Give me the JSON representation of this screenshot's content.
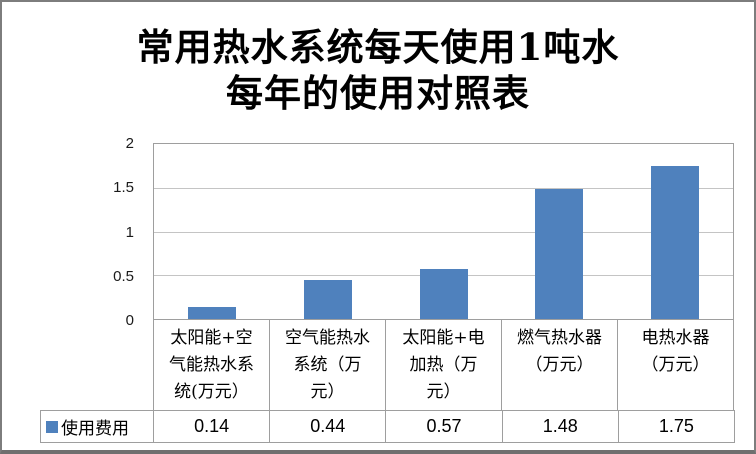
{
  "window": {
    "background": "#ffffff",
    "border_color": "#7d7d7d"
  },
  "title": {
    "line1": "常用热水系统每天使用1吨水",
    "line2": "每年的使用对照表"
  },
  "chart_data": {
    "type": "bar",
    "title": "常用热水系统每天使用1吨水每年的使用对照表",
    "categories": [
      "太阳能+空气能热水系统(万元）",
      "空气能热水系统（万元）",
      "太阳能+电加热（万元）",
      "燃气热水器（万元）",
      "电热水器（万元）"
    ],
    "series": [
      {
        "name": "使用费用",
        "values": [
          0.14,
          0.44,
          0.57,
          1.48,
          1.75
        ]
      }
    ],
    "xlabel": "",
    "ylabel": "",
    "ylim": [
      0,
      2
    ],
    "yticks": [
      0,
      0.5,
      1,
      1.5,
      2
    ],
    "ytick_labels": [
      "0",
      "0.5",
      "1",
      "1.5",
      "2"
    ],
    "grid": true,
    "legend_position": "bottom-left-table",
    "bar_color": "#4F81BD",
    "gridline_color": "#c4c4c4",
    "axis_border_color": "#9e9e9e"
  },
  "data_table": {
    "header_lines": [
      [
        "太阳能+空",
        "气能热水系",
        "统(万元）"
      ],
      [
        "空气能热水",
        "系统（万",
        "元）"
      ],
      [
        "太阳能+电",
        "加热（万",
        "元）"
      ],
      [
        "燃气热水器",
        "（万元）"
      ],
      [
        "电热水器",
        "（万元）"
      ]
    ],
    "row_label": "使用费用",
    "values": [
      "0.14",
      "0.44",
      "0.57",
      "1.48",
      "1.75"
    ]
  }
}
